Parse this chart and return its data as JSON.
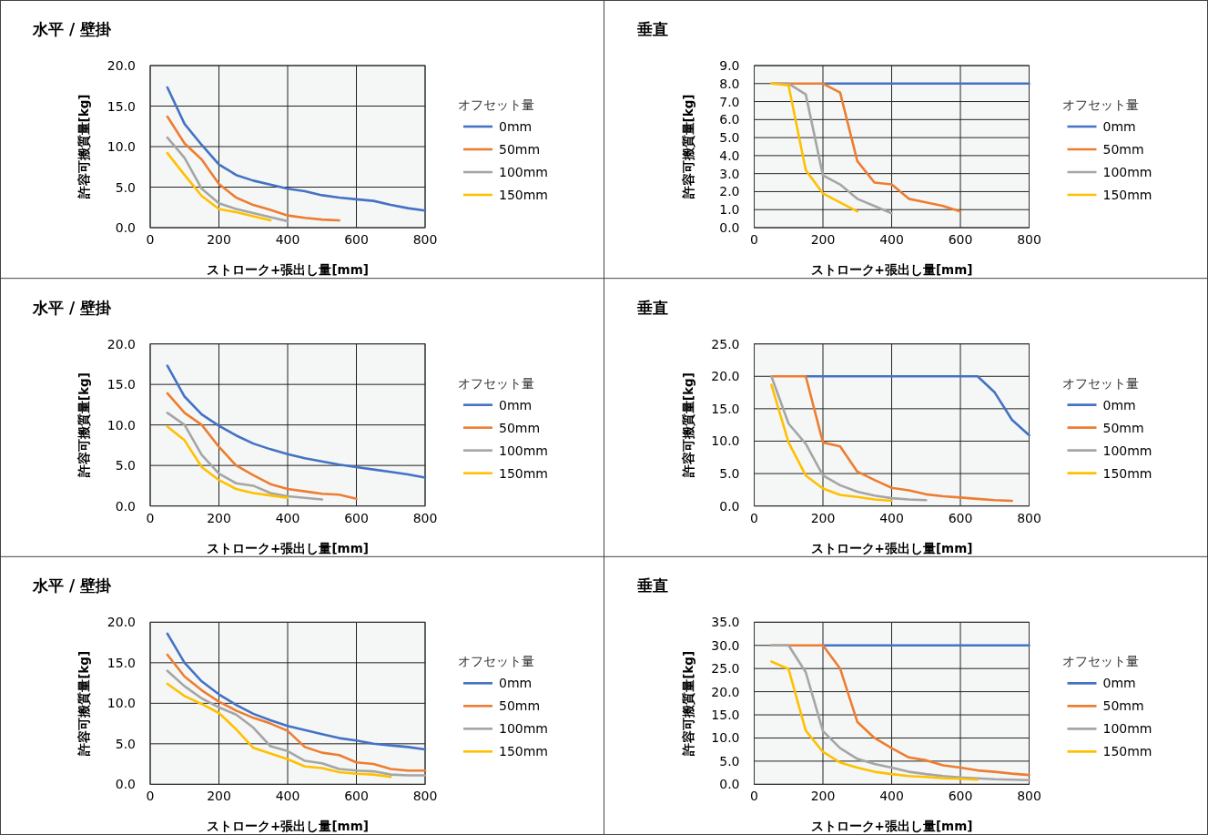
{
  "chart_data": [
    {
      "type": "line",
      "title": "水平 / 壁掛",
      "xlabel": "ストローク+張出し量[mm]",
      "ylabel": "許容可搬質量[kg]",
      "legend_title": "オフセット量",
      "legend": "right",
      "grid": true,
      "xlim": [
        0,
        800
      ],
      "xticks": [
        0,
        200,
        400,
        600,
        800
      ],
      "ylim": [
        0,
        20
      ],
      "yticks": [
        {
          "value": 0,
          "label": "0.0"
        },
        {
          "value": 5,
          "label": "5.0"
        },
        {
          "value": 10,
          "label": "10.0"
        },
        {
          "value": 15,
          "label": "15.0"
        },
        {
          "value": 20,
          "label": "20.0"
        }
      ],
      "series": [
        {
          "name": "0mm",
          "color": "#4472c4",
          "x": [
            50,
            100,
            150,
            200,
            250,
            300,
            350,
            400,
            450,
            500,
            550,
            600,
            650,
            700,
            750,
            800
          ],
          "values": [
            17.3,
            12.8,
            10.2,
            7.8,
            6.5,
            5.8,
            5.3,
            4.8,
            4.5,
            4.0,
            3.7,
            3.5,
            3.3,
            2.8,
            2.4,
            2.1
          ]
        },
        {
          "name": "50mm",
          "color": "#ed7d31",
          "x": [
            50,
            100,
            150,
            200,
            250,
            300,
            350,
            400,
            450,
            500,
            550
          ],
          "values": [
            13.7,
            10.4,
            8.4,
            5.4,
            3.7,
            2.8,
            2.2,
            1.5,
            1.2,
            1.0,
            0.9
          ]
        },
        {
          "name": "100mm",
          "color": "#a5a5a5",
          "x": [
            50,
            100,
            150,
            200,
            250,
            300,
            350,
            400
          ],
          "values": [
            11.1,
            8.6,
            4.8,
            3.0,
            2.3,
            1.8,
            1.3,
            0.8
          ]
        },
        {
          "name": "150mm",
          "color": "#ffc000",
          "x": [
            50,
            100,
            150,
            200,
            250,
            300,
            350
          ],
          "values": [
            9.2,
            6.5,
            3.9,
            2.3,
            1.9,
            1.4,
            0.9
          ]
        }
      ]
    },
    {
      "type": "line",
      "title": "垂直",
      "xlabel": "ストローク+張出し量[mm]",
      "ylabel": "許容可搬質量[kg]",
      "legend_title": "オフセット量",
      "legend": "right",
      "grid": true,
      "xlim": [
        0,
        800
      ],
      "xticks": [
        0,
        200,
        400,
        600,
        800
      ],
      "ylim": [
        0,
        9
      ],
      "yticks": [
        {
          "value": 0,
          "label": "0.0"
        },
        {
          "value": 1,
          "label": "1.0"
        },
        {
          "value": 2,
          "label": "2.0"
        },
        {
          "value": 3,
          "label": "3.0"
        },
        {
          "value": 4,
          "label": "4.0"
        },
        {
          "value": 5,
          "label": "5.0"
        },
        {
          "value": 6,
          "label": "6.0"
        },
        {
          "value": 7,
          "label": "7.0"
        },
        {
          "value": 8,
          "label": "8.0"
        },
        {
          "value": 9,
          "label": "9.0"
        }
      ],
      "series": [
        {
          "name": "0mm",
          "color": "#4472c4",
          "x": [
            200,
            800
          ],
          "values": [
            8,
            8
          ]
        },
        {
          "name": "50mm",
          "color": "#ed7d31",
          "x": [
            50,
            100,
            150,
            200,
            250,
            300,
            350,
            400,
            450,
            500,
            550,
            600
          ],
          "values": [
            8,
            8,
            8,
            8,
            7.5,
            3.7,
            2.5,
            2.4,
            1.6,
            1.4,
            1.2,
            0.9
          ]
        },
        {
          "name": "100mm",
          "color": "#a5a5a5",
          "x": [
            50,
            100,
            150,
            200,
            250,
            300,
            350,
            400
          ],
          "values": [
            8,
            8,
            7.4,
            2.9,
            2.4,
            1.6,
            1.2,
            0.8
          ]
        },
        {
          "name": "150mm",
          "color": "#ffc000",
          "x": [
            50,
            100,
            150,
            200,
            250,
            300
          ],
          "values": [
            8,
            7.9,
            3.2,
            1.9,
            1.4,
            0.9
          ]
        }
      ]
    },
    {
      "type": "line",
      "title": "水平 / 壁掛",
      "xlabel": "ストローク+張出し量[mm]",
      "ylabel": "許容可搬質量[kg]",
      "legend_title": "オフセット量",
      "legend": "right",
      "grid": true,
      "xlim": [
        0,
        800
      ],
      "xticks": [
        0,
        200,
        400,
        600,
        800
      ],
      "ylim": [
        0,
        20
      ],
      "yticks": [
        {
          "value": 0,
          "label": "0.0"
        },
        {
          "value": 5,
          "label": "5.0"
        },
        {
          "value": 10,
          "label": "10.0"
        },
        {
          "value": 15,
          "label": "15.0"
        },
        {
          "value": 20,
          "label": "20.0"
        }
      ],
      "series": [
        {
          "name": "0mm",
          "color": "#4472c4",
          "x": [
            50,
            100,
            150,
            200,
            250,
            300,
            350,
            400,
            450,
            500,
            550,
            600,
            650,
            700,
            750,
            800
          ],
          "values": [
            17.3,
            13.5,
            11.3,
            9.9,
            8.7,
            7.7,
            7.0,
            6.4,
            5.9,
            5.5,
            5.1,
            4.8,
            4.5,
            4.2,
            3.9,
            3.5
          ]
        },
        {
          "name": "50mm",
          "color": "#ed7d31",
          "x": [
            50,
            100,
            150,
            200,
            250,
            300,
            350,
            400,
            450,
            500,
            550,
            600
          ],
          "values": [
            13.9,
            11.5,
            10.0,
            7.3,
            5.0,
            3.8,
            2.7,
            2.1,
            1.8,
            1.5,
            1.4,
            0.9
          ]
        },
        {
          "name": "100mm",
          "color": "#a5a5a5",
          "x": [
            50,
            100,
            150,
            200,
            250,
            300,
            350,
            400,
            450,
            500
          ],
          "values": [
            11.5,
            10.0,
            6.3,
            4.0,
            2.8,
            2.5,
            1.6,
            1.2,
            1.0,
            0.8
          ]
        },
        {
          "name": "150mm",
          "color": "#ffc000",
          "x": [
            50,
            100,
            150,
            200,
            250,
            300,
            350,
            400
          ],
          "values": [
            9.8,
            8.1,
            4.8,
            3.2,
            2.1,
            1.6,
            1.3,
            1.0
          ]
        }
      ]
    },
    {
      "type": "line",
      "title": "垂直",
      "xlabel": "ストローク+張出し量[mm]",
      "ylabel": "許容可搬質量[kg]",
      "legend_title": "オフセット量",
      "legend": "right",
      "grid": true,
      "xlim": [
        0,
        800
      ],
      "xticks": [
        0,
        200,
        400,
        600,
        800
      ],
      "ylim": [
        0,
        25
      ],
      "yticks": [
        {
          "value": 0,
          "label": "0.0"
        },
        {
          "value": 5,
          "label": "5.0"
        },
        {
          "value": 10,
          "label": "10.0"
        },
        {
          "value": 15,
          "label": "15.0"
        },
        {
          "value": 20,
          "label": "20.0"
        },
        {
          "value": 25,
          "label": "25.0"
        }
      ],
      "series": [
        {
          "name": "0mm",
          "color": "#4472c4",
          "x": [
            150,
            650,
            700,
            750,
            800
          ],
          "values": [
            20,
            20,
            17.5,
            13.3,
            10.9
          ]
        },
        {
          "name": "50mm",
          "color": "#ed7d31",
          "x": [
            50,
            100,
            150,
            200,
            250,
            300,
            350,
            400,
            450,
            500,
            550,
            600,
            650,
            700,
            750
          ],
          "values": [
            20,
            20,
            20,
            9.8,
            9.2,
            5.3,
            4.0,
            2.8,
            2.4,
            1.8,
            1.5,
            1.3,
            1.1,
            0.9,
            0.8
          ]
        },
        {
          "name": "100mm",
          "color": "#a5a5a5",
          "x": [
            50,
            100,
            150,
            200,
            250,
            300,
            350,
            400,
            450,
            500
          ],
          "values": [
            20,
            12.7,
            9.6,
            4.7,
            3.2,
            2.2,
            1.6,
            1.2,
            1.0,
            0.9
          ]
        },
        {
          "name": "150mm",
          "color": "#ffc000",
          "x": [
            50,
            100,
            150,
            200,
            250,
            300,
            350,
            400
          ],
          "values": [
            18.7,
            9.8,
            4.7,
            2.7,
            1.7,
            1.4,
            1.0,
            0.8
          ]
        }
      ]
    },
    {
      "type": "line",
      "title": "水平 / 壁掛",
      "xlabel": "ストローク+張出し量[mm]",
      "ylabel": "許容可搬質量[kg]",
      "legend_title": "オフセット量",
      "legend": "right",
      "grid": true,
      "xlim": [
        0,
        800
      ],
      "xticks": [
        0,
        200,
        400,
        600,
        800
      ],
      "ylim": [
        0,
        20
      ],
      "yticks": [
        {
          "value": 0,
          "label": "0.0"
        },
        {
          "value": 5,
          "label": "5.0"
        },
        {
          "value": 10,
          "label": "10.0"
        },
        {
          "value": 15,
          "label": "15.0"
        },
        {
          "value": 20,
          "label": "20.0"
        }
      ],
      "series": [
        {
          "name": "0mm",
          "color": "#4472c4",
          "x": [
            50,
            100,
            150,
            200,
            250,
            300,
            350,
            400,
            450,
            500,
            550,
            600,
            650,
            700,
            750,
            800
          ],
          "values": [
            18.6,
            15.0,
            12.7,
            11.1,
            9.8,
            8.7,
            7.9,
            7.2,
            6.7,
            6.2,
            5.7,
            5.4,
            5.0,
            4.8,
            4.6,
            4.3
          ]
        },
        {
          "name": "50mm",
          "color": "#ed7d31",
          "x": [
            50,
            100,
            150,
            200,
            250,
            300,
            350,
            400,
            450,
            500,
            550,
            600,
            650,
            700,
            750,
            800
          ],
          "values": [
            16.0,
            13.3,
            11.6,
            10.2,
            9.1,
            8.2,
            7.5,
            6.6,
            4.6,
            3.9,
            3.6,
            2.7,
            2.5,
            1.9,
            1.7,
            1.7
          ]
        },
        {
          "name": "100mm",
          "color": "#a5a5a5",
          "x": [
            50,
            100,
            150,
            200,
            250,
            300,
            350,
            400,
            450,
            500,
            550,
            600,
            650,
            700,
            750,
            800
          ],
          "values": [
            14.0,
            12.1,
            10.6,
            9.5,
            8.6,
            7.0,
            4.7,
            4.1,
            2.9,
            2.6,
            1.9,
            1.7,
            1.6,
            1.2,
            1.1,
            1.1
          ]
        },
        {
          "name": "150mm",
          "color": "#ffc000",
          "x": [
            50,
            100,
            150,
            200,
            250,
            300,
            350,
            400,
            450,
            500,
            550,
            600,
            650,
            700
          ],
          "values": [
            12.4,
            10.9,
            9.9,
            8.8,
            6.8,
            4.5,
            3.8,
            3.1,
            2.2,
            2.0,
            1.5,
            1.3,
            1.2,
            0.9
          ]
        }
      ]
    },
    {
      "type": "line",
      "title": "垂直",
      "xlabel": "ストローク+張出し量[mm]",
      "ylabel": "許容可搬質量[kg]",
      "legend_title": "オフセット量",
      "legend": "right",
      "grid": true,
      "xlim": [
        0,
        800
      ],
      "xticks": [
        0,
        200,
        400,
        600,
        800
      ],
      "ylim": [
        0,
        35
      ],
      "yticks": [
        {
          "value": 0,
          "label": "0.0"
        },
        {
          "value": 5,
          "label": "5.0"
        },
        {
          "value": 10,
          "label": "10.0"
        },
        {
          "value": 15,
          "label": "15.0"
        },
        {
          "value": 20,
          "label": "20.0"
        },
        {
          "value": 25,
          "label": "25.0"
        },
        {
          "value": 30,
          "label": "30.0"
        },
        {
          "value": 35,
          "label": "35.0"
        }
      ],
      "series": [
        {
          "name": "0mm",
          "color": "#4472c4",
          "x": [
            200,
            800
          ],
          "values": [
            30,
            30
          ]
        },
        {
          "name": "50mm",
          "color": "#ed7d31",
          "x": [
            50,
            100,
            150,
            200,
            250,
            300,
            350,
            400,
            450,
            500,
            550,
            600,
            650,
            700,
            750,
            800
          ],
          "values": [
            30,
            30,
            30,
            30,
            25,
            13.5,
            10,
            7.8,
            5.8,
            5.2,
            4.1,
            3.6,
            3.0,
            2.7,
            2.3,
            2.0
          ]
        },
        {
          "name": "100mm",
          "color": "#a5a5a5",
          "x": [
            50,
            100,
            150,
            200,
            250,
            300,
            350,
            400,
            450,
            500,
            550,
            600,
            650,
            700,
            750,
            800
          ],
          "values": [
            30,
            30,
            24.2,
            11.5,
            7.8,
            5.5,
            4.4,
            3.6,
            2.7,
            2.2,
            1.8,
            1.5,
            1.3,
            1.1,
            1.0,
            0.9
          ]
        },
        {
          "name": "150mm",
          "color": "#ffc000",
          "x": [
            50,
            100,
            150,
            200,
            250,
            300,
            350,
            400,
            450,
            500,
            550,
            600,
            650
          ],
          "values": [
            26.5,
            24.9,
            11.6,
            7.0,
            4.7,
            3.6,
            2.7,
            2.2,
            1.8,
            1.6,
            1.3,
            1.2,
            1.0
          ]
        }
      ]
    }
  ]
}
